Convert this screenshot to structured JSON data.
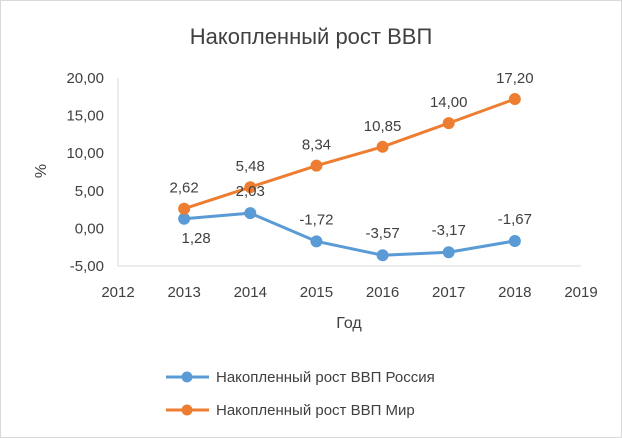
{
  "chart_data": {
    "type": "line",
    "title": "Накопленный рост ВВП",
    "xlabel": "Год",
    "ylabel": "%",
    "xlim": [
      2012,
      2019
    ],
    "ylim": [
      -5,
      20
    ],
    "x_ticks": [
      "2012",
      "2013",
      "2014",
      "2015",
      "2016",
      "2017",
      "2018",
      "2019"
    ],
    "y_ticks": [
      "-5,00",
      "0,00",
      "5,00",
      "10,00",
      "15,00",
      "20,00"
    ],
    "x": [
      2013,
      2014,
      2015,
      2016,
      2017,
      2018
    ],
    "series": [
      {
        "name": "Накопленный рост ВВП Россия",
        "color": "#5B9BD5",
        "values": [
          1.28,
          2.03,
          -1.72,
          -3.57,
          -3.17,
          -1.67
        ],
        "labels": [
          "1,28",
          "2,03",
          "-1,72",
          "-3,57",
          "-3,17",
          "-1,67"
        ]
      },
      {
        "name": "Накопленный рост ВВП Мир",
        "color": "#ED7D31",
        "values": [
          2.62,
          5.48,
          8.34,
          10.85,
          14.0,
          17.2
        ],
        "labels": [
          "2,62",
          "5,48",
          "8,34",
          "10,85",
          "14,00",
          "17,20"
        ]
      }
    ],
    "grid": false,
    "legend": "bottom"
  }
}
